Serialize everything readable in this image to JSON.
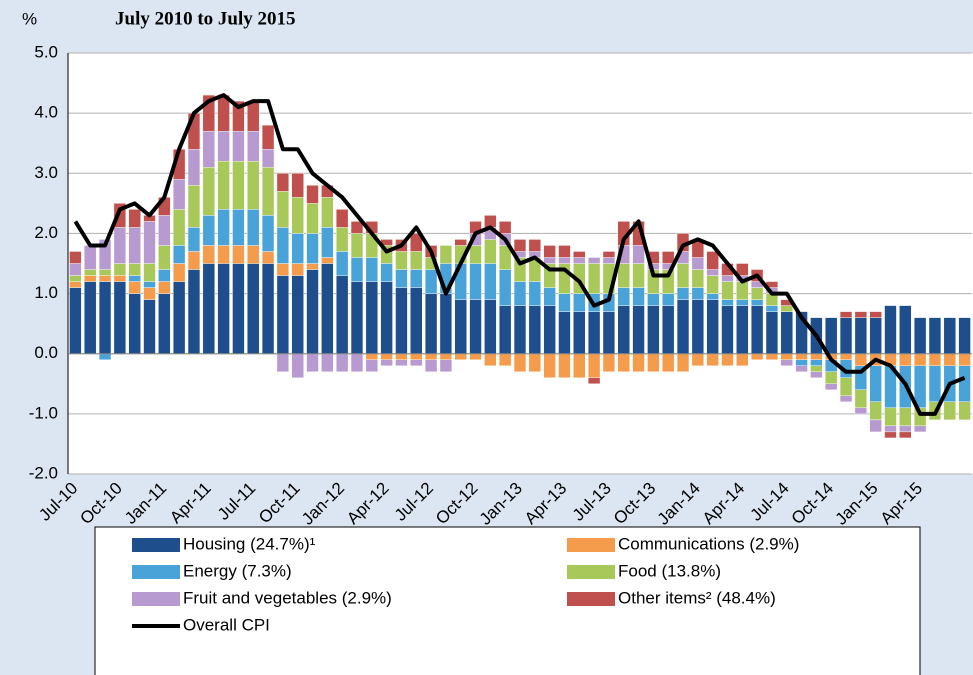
{
  "chart_data": {
    "type": "bar",
    "subtitle": "July 2010 to July 2015",
    "y_label": "%",
    "categories": [
      "Jul-10",
      null,
      null,
      "Oct-10",
      null,
      null,
      "Jan-11",
      null,
      null,
      "Apr-11",
      null,
      null,
      "Jul-11",
      null,
      null,
      "Oct-11",
      null,
      null,
      "Jan-12",
      null,
      null,
      "Apr-12",
      null,
      null,
      "Jul-12",
      null,
      null,
      "Oct-12",
      null,
      null,
      "Jan-13",
      null,
      null,
      "Apr-13",
      null,
      null,
      "Jul-13",
      null,
      null,
      "Oct-13",
      null,
      null,
      "Jan-14",
      null,
      null,
      "Apr-14",
      null,
      null,
      "Jul-14",
      null,
      null,
      "Oct-14",
      null,
      null,
      "Jan-15",
      null,
      null,
      "Apr-15",
      null,
      null,
      null
    ],
    "ylim": [
      -2,
      5
    ],
    "yticks": [
      {
        "value": -2,
        "label": "-2.0"
      },
      {
        "value": -1,
        "label": "-1.0"
      },
      {
        "value": 0,
        "label": "0.0"
      },
      {
        "value": 1,
        "label": "1.0"
      },
      {
        "value": 2,
        "label": "2.0"
      },
      {
        "value": 3,
        "label": "3.0"
      },
      {
        "value": 4,
        "label": "4.0"
      },
      {
        "value": 5,
        "label": "5.0"
      }
    ],
    "grid": true,
    "series": [
      {
        "name": "Housing (24.7%)¹",
        "color": "#1f4e8c",
        "values": [
          1.1,
          1.2,
          1.2,
          1.2,
          1.0,
          0.9,
          1.0,
          1.2,
          1.4,
          1.5,
          1.5,
          1.5,
          1.5,
          1.5,
          1.3,
          1.3,
          1.4,
          1.5,
          1.3,
          1.2,
          1.2,
          1.2,
          1.1,
          1.1,
          1.0,
          1.0,
          0.9,
          0.9,
          0.9,
          0.8,
          0.8,
          0.8,
          0.8,
          0.7,
          0.7,
          0.7,
          0.7,
          0.8,
          0.8,
          0.8,
          0.8,
          0.9,
          0.9,
          0.9,
          0.8,
          0.8,
          0.8,
          0.7,
          0.7,
          0.7,
          0.6,
          0.6,
          0.6,
          0.6,
          0.6,
          0.8,
          0.8,
          0.6,
          0.6,
          0.6,
          0.6
        ]
      },
      {
        "name": "Communications (2.9%)",
        "color": "#f59b4c",
        "values": [
          0.1,
          0.1,
          0.1,
          0.1,
          0.2,
          0.2,
          0.2,
          0.3,
          0.3,
          0.3,
          0.3,
          0.3,
          0.3,
          0.2,
          0.2,
          0.2,
          0.1,
          0.1,
          0.0,
          0.0,
          -0.1,
          -0.1,
          -0.1,
          -0.1,
          -0.1,
          -0.1,
          -0.1,
          -0.1,
          -0.2,
          -0.2,
          -0.3,
          -0.3,
          -0.4,
          -0.4,
          -0.4,
          -0.4,
          -0.3,
          -0.3,
          -0.3,
          -0.3,
          -0.3,
          -0.3,
          -0.2,
          -0.2,
          -0.2,
          -0.2,
          -0.1,
          -0.1,
          -0.1,
          -0.1,
          -0.1,
          -0.1,
          -0.1,
          -0.2,
          -0.2,
          -0.2,
          -0.2,
          -0.2,
          -0.2,
          -0.2,
          -0.2
        ]
      },
      {
        "name": "Energy (7.3%)",
        "color": "#4aa3d8",
        "values": [
          0.0,
          0.0,
          -0.1,
          0.0,
          0.1,
          0.1,
          0.2,
          0.3,
          0.4,
          0.5,
          0.6,
          0.6,
          0.6,
          0.6,
          0.6,
          0.5,
          0.5,
          0.5,
          0.4,
          0.4,
          0.4,
          0.3,
          0.3,
          0.3,
          0.4,
          0.5,
          0.6,
          0.6,
          0.6,
          0.6,
          0.4,
          0.4,
          0.3,
          0.3,
          0.3,
          0.3,
          0.3,
          0.3,
          0.3,
          0.2,
          0.2,
          0.2,
          0.2,
          0.1,
          0.1,
          0.1,
          0.1,
          0.1,
          0.0,
          -0.1,
          -0.1,
          -0.2,
          -0.3,
          -0.4,
          -0.6,
          -0.7,
          -0.7,
          -0.7,
          -0.6,
          -0.6,
          -0.6
        ]
      },
      {
        "name": "Food (13.8%)",
        "color": "#a8c85a",
        "values": [
          0.1,
          0.1,
          0.1,
          0.2,
          0.2,
          0.3,
          0.4,
          0.6,
          0.7,
          0.8,
          0.8,
          0.8,
          0.8,
          0.8,
          0.6,
          0.6,
          0.5,
          0.5,
          0.4,
          0.4,
          0.4,
          0.3,
          0.3,
          0.3,
          0.2,
          0.3,
          0.3,
          0.3,
          0.4,
          0.4,
          0.4,
          0.4,
          0.4,
          0.5,
          0.5,
          0.5,
          0.5,
          0.4,
          0.4,
          0.4,
          0.4,
          0.4,
          0.3,
          0.3,
          0.3,
          0.3,
          0.2,
          0.2,
          0.1,
          0.0,
          -0.1,
          -0.2,
          -0.3,
          -0.3,
          -0.3,
          -0.3,
          -0.3,
          -0.3,
          -0.3,
          -0.3,
          -0.3
        ]
      },
      {
        "name": "Fruit and vegetables (2.9%)",
        "color": "#b79ad0",
        "values": [
          0.2,
          0.4,
          0.5,
          0.6,
          0.6,
          0.7,
          0.5,
          0.5,
          0.6,
          0.6,
          0.5,
          0.5,
          0.5,
          0.3,
          -0.3,
          -0.4,
          -0.3,
          -0.3,
          -0.3,
          -0.3,
          -0.2,
          -0.1,
          -0.1,
          -0.1,
          -0.2,
          -0.2,
          0.0,
          0.2,
          0.2,
          0.2,
          0.1,
          0.1,
          0.1,
          0.1,
          0.1,
          0.1,
          0.1,
          0.3,
          0.3,
          0.1,
          0.1,
          0.2,
          0.2,
          0.1,
          0.1,
          0.1,
          0.1,
          0.1,
          -0.1,
          -0.1,
          -0.1,
          -0.1,
          -0.1,
          -0.1,
          -0.2,
          -0.1,
          -0.1,
          -0.1,
          0.0,
          0.0,
          0.0
        ]
      },
      {
        "name": "Other items² (48.4%)",
        "color": "#c0504d",
        "values": [
          0.2,
          0.0,
          0.0,
          0.4,
          0.3,
          0.1,
          0.3,
          0.5,
          0.6,
          0.6,
          0.6,
          0.5,
          0.5,
          0.4,
          0.3,
          0.4,
          0.3,
          0.2,
          0.3,
          0.2,
          0.2,
          0.1,
          0.2,
          0.3,
          0.2,
          0.0,
          0.1,
          0.2,
          0.2,
          0.2,
          0.2,
          0.2,
          0.2,
          0.2,
          0.1,
          -0.1,
          0.1,
          0.4,
          0.4,
          0.2,
          0.2,
          0.3,
          0.3,
          0.3,
          0.2,
          0.2,
          0.2,
          0.1,
          0.1,
          0.0,
          0.0,
          0.0,
          0.1,
          0.1,
          0.1,
          -0.1,
          -0.1,
          0.0,
          0.0,
          0.0,
          0.0
        ]
      },
      {
        "name": "Overall CPI",
        "color": "#000000",
        "type": "line",
        "values": [
          2.2,
          1.8,
          1.8,
          2.4,
          2.5,
          2.3,
          2.6,
          3.4,
          4.0,
          4.2,
          4.3,
          4.1,
          4.2,
          4.2,
          3.4,
          3.4,
          3.0,
          2.8,
          2.6,
          2.3,
          2.0,
          1.7,
          1.8,
          2.1,
          1.7,
          1.0,
          1.5,
          2.0,
          2.1,
          1.9,
          1.5,
          1.6,
          1.4,
          1.4,
          1.2,
          0.8,
          0.9,
          1.9,
          2.2,
          1.3,
          1.3,
          1.8,
          1.9,
          1.8,
          1.5,
          1.2,
          1.3,
          1.0,
          1.0,
          0.6,
          0.3,
          -0.1,
          -0.3,
          -0.3,
          -0.1,
          -0.2,
          -0.5,
          -1.0,
          -1.0,
          -0.5,
          -0.4
        ]
      }
    ]
  }
}
